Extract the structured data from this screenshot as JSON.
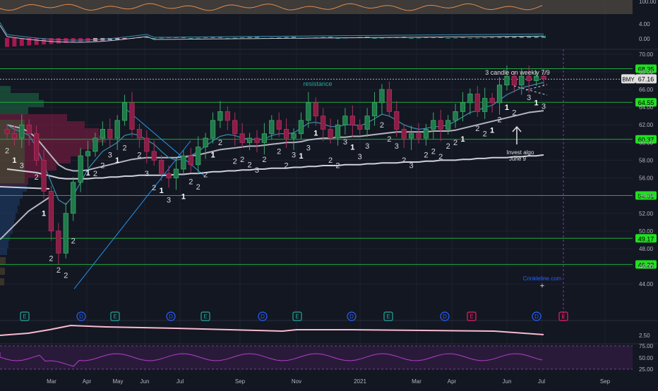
{
  "chart_data": {
    "type": "candlestick",
    "ticker": "BMY",
    "last_price": "67.16",
    "x_labels": [
      "Mar",
      "Apr",
      "May",
      "Jun",
      "Jul",
      "Sep",
      "Nov",
      "2021",
      "Mar",
      "Apr",
      "Jun",
      "Jul",
      "Sep"
    ],
    "price_ticks": [
      "70.00",
      "68.00",
      "66.00",
      "64.00",
      "62.00",
      "60.00",
      "58.00",
      "56.00",
      "54.00",
      "52.00",
      "50.00",
      "48.00",
      "46.00",
      "44.00"
    ],
    "ylim": [
      43.5,
      71.5
    ],
    "levels": [
      {
        "value": 68.35,
        "label": "68.35"
      },
      {
        "value": 64.55,
        "label": "64.55"
      },
      {
        "value": 60.37,
        "label": "60.37"
      },
      {
        "value": 54.01,
        "label": "54.01"
      },
      {
        "value": 49.17,
        "label": "49.17"
      },
      {
        "value": 46.22,
        "label": "46.22"
      }
    ],
    "closes": [
      61.0,
      60.5,
      62.0,
      61.0,
      58.0,
      54.5,
      50.0,
      47.5,
      52.0,
      55.5,
      58.5,
      59.0,
      60.5,
      61.5,
      60.5,
      62.5,
      64.5,
      61.5,
      60.5,
      59.0,
      58.0,
      56.5,
      56.0,
      57.0,
      58.5,
      57.5,
      59.5,
      60.5,
      62.5,
      63.5,
      62.5,
      61.0,
      60.0,
      60.5,
      60.0,
      61.0,
      62.5,
      61.5,
      60.5,
      61.0,
      62.5,
      64.5,
      63.0,
      61.5,
      60.5,
      62.0,
      63.0,
      62.0,
      61.5,
      63.0,
      64.5,
      66.0,
      63.5,
      61.5,
      60.5,
      61.0,
      60.5,
      61.5,
      62.5,
      61.5,
      62.5,
      63.5,
      64.5,
      65.5,
      63.5,
      65.0,
      64.5,
      66.5,
      67.5,
      66.5,
      67.5,
      67.0,
      67.5,
      67.2
    ],
    "ma_fast": [
      62.0,
      61.5,
      61.2,
      60.8,
      59.5,
      57.5,
      55.5,
      53.5,
      53.0,
      54.0,
      55.5,
      57.0,
      58.0,
      59.0,
      59.5,
      60.0,
      60.8,
      61.0,
      60.8,
      60.3,
      59.8,
      59.0,
      58.3,
      58.0,
      58.2,
      58.5,
      59.0,
      59.6,
      60.2,
      60.7,
      60.9,
      60.8,
      60.5,
      60.4,
      60.3,
      60.4,
      60.8,
      61.0,
      61.0,
      61.1,
      61.6,
      62.2,
      62.3,
      62.1,
      61.8,
      61.8,
      62.0,
      62.0,
      61.9,
      62.2,
      62.7,
      63.2,
      63.0,
      62.5,
      62.0,
      61.7,
      61.5,
      61.6,
      61.8,
      61.8,
      62.0,
      62.4,
      62.9,
      63.4,
      63.6,
      64.0,
      64.2,
      64.8,
      65.4,
      65.8,
      66.2,
      66.4,
      66.6,
      66.8
    ],
    "ma_mid": [
      62.0,
      61.8,
      61.6,
      61.2,
      60.5,
      59.5,
      58.5,
      57.5,
      57.0,
      56.8,
      56.8,
      56.9,
      57.1,
      57.3,
      57.5,
      57.7,
      57.9,
      58.1,
      58.2,
      58.3,
      58.3,
      58.3,
      58.3,
      58.3,
      58.4,
      58.5,
      58.6,
      58.8,
      59.0,
      59.2,
      59.3,
      59.4,
      59.5,
      59.6,
      59.6,
      59.7,
      59.8,
      59.9,
      60.0,
      60.0,
      60.1,
      60.3,
      60.4,
      60.5,
      60.5,
      60.6,
      60.6,
      60.7,
      60.7,
      60.8,
      60.9,
      61.0,
      61.1,
      61.2,
      61.2,
      61.2,
      61.2,
      61.2,
      61.3,
      61.3,
      61.3,
      61.4,
      61.6,
      61.8,
      62.0,
      62.2,
      62.4,
      62.6,
      62.8,
      63.0,
      63.2,
      63.4,
      63.5,
      63.6
    ],
    "ma_slow": [
      57.0,
      56.9,
      56.8,
      56.7,
      56.6,
      56.4,
      56.2,
      56.0,
      55.9,
      55.9,
      55.9,
      55.9,
      56.0,
      56.0,
      56.1,
      56.1,
      56.2,
      56.2,
      56.3,
      56.3,
      56.3,
      56.3,
      56.3,
      56.4,
      56.4,
      56.5,
      56.5,
      56.6,
      56.7,
      56.7,
      56.8,
      56.8,
      56.9,
      56.9,
      57.0,
      57.0,
      57.1,
      57.1,
      57.1,
      57.2,
      57.2,
      57.3,
      57.3,
      57.4,
      57.4,
      57.4,
      57.5,
      57.5,
      57.5,
      57.6,
      57.6,
      57.7,
      57.7,
      57.7,
      57.8,
      57.8,
      57.8,
      57.9,
      57.9,
      58.0,
      58.0,
      58.0,
      58.1,
      58.1,
      58.2,
      58.2,
      58.3,
      58.3,
      58.3,
      58.4,
      58.4,
      58.5,
      58.5,
      58.6
    ],
    "candle_labels": [
      "2",
      "1",
      "3",
      "2",
      "1",
      "2",
      "2",
      "2",
      "2",
      "1",
      "2",
      "2",
      "3",
      "1",
      "2",
      "2",
      "3",
      "2",
      "1",
      "3",
      "1",
      "2",
      "2",
      "2",
      "1",
      "2",
      "2",
      "2",
      "2",
      "3",
      "2",
      "2",
      "2",
      "3",
      "1",
      "3",
      "1",
      "2",
      "2",
      "3",
      "1",
      "3",
      "3",
      "2",
      "2",
      "3",
      "2",
      "3",
      "2",
      "2",
      "2",
      "2",
      "2",
      "1",
      "2",
      "2",
      "1",
      "2",
      "1",
      "2",
      "3",
      "1",
      "3"
    ],
    "annotations": {
      "resistance": "resistance",
      "weekly": "3 candle on weekly 7/9",
      "invest_algo": "Invest algo\nJune 9",
      "watermark": "Crinkleline.com"
    },
    "events": [
      {
        "type": "E",
        "color": "#26a69a"
      },
      {
        "type": "D",
        "color": "#2962ff"
      },
      {
        "type": "E",
        "color": "#26a69a"
      },
      {
        "type": "D",
        "color": "#2962ff"
      },
      {
        "type": "E",
        "color": "#26a69a"
      },
      {
        "type": "D",
        "color": "#2962ff"
      },
      {
        "type": "E",
        "color": "#26a69a"
      },
      {
        "type": "D",
        "color": "#2962ff"
      },
      {
        "type": "E",
        "color": "#26a69a"
      },
      {
        "type": "D",
        "color": "#2962ff"
      },
      {
        "type": "E",
        "color": "#e91e63"
      },
      {
        "type": "D",
        "color": "#2962ff"
      },
      {
        "type": "E",
        "color": "#e91e63"
      }
    ],
    "osc_top_ticks": [
      "100.00",
      "4.00",
      "0.00"
    ],
    "osc_bottom_ticks": [
      "2.50",
      "75.00",
      "50.00",
      "25.00"
    ],
    "colors": {
      "bg": "#131722",
      "up": "#1f7a4a",
      "down": "#8a1e45",
      "level": "#1faa3f",
      "label_bg": "#1ee01e",
      "ma_fast": "#3a8fb0",
      "ma_mid": "#b5b5c0",
      "ma_slow": "#d0d0da",
      "grid": "#1e2230",
      "purple": "#9c27b0"
    }
  }
}
